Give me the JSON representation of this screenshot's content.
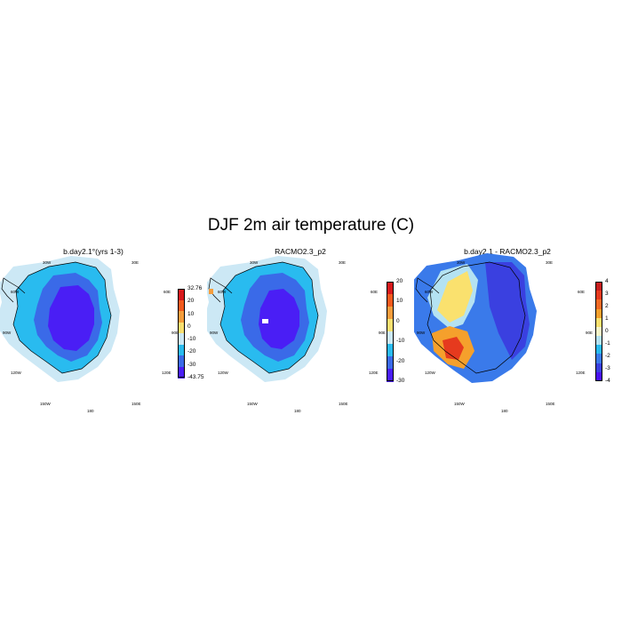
{
  "title": "DJF 2m air temperature (C)",
  "panels": [
    {
      "title": "b.day2.1°(yrs 1-3)",
      "colorbar": {
        "ticks": [
          "32.76",
          "20",
          "10",
          "0",
          "-10",
          "-20",
          "-30",
          "-43.75"
        ],
        "colors": [
          "#d7191c",
          "#f25a1d",
          "#f59d3c",
          "#f8e070",
          "#cce8f5",
          "#29bbef",
          "#3a6ae8",
          "#4a1ef5"
        ]
      }
    },
    {
      "title": "RACMO2.3_p2",
      "colorbar": {
        "ticks": [
          "20",
          "10",
          "0",
          "-10",
          "-20",
          "-30"
        ],
        "colors": [
          "#d7191c",
          "#f25a1d",
          "#f59d3c",
          "#f8e070",
          "#cce8f5",
          "#29bbef",
          "#3a6ae8",
          "#4a1ef5"
        ]
      }
    },
    {
      "title": "b.day2.1 - RACMO2.3_p2",
      "colorbar": {
        "ticks": [
          "4",
          "3",
          "2",
          "1",
          "0",
          "-1",
          "-2",
          "-3",
          "-4"
        ],
        "colors": [
          "#c81e1e",
          "#e63a1e",
          "#f26a24",
          "#f5a02c",
          "#fae16e",
          "#f5f5c8",
          "#b4e2f2",
          "#29bbef",
          "#3a7aea",
          "#3a40e0",
          "#4a10f0"
        ]
      }
    }
  ],
  "lon_labels": {
    "lon30w": "30W",
    "lon30e": "30E",
    "lon60w": "60W",
    "lon60e": "60E",
    "lon90w": "90W",
    "lon90e": "90E",
    "lon120w": "120W",
    "lon120e": "120E",
    "lon150w": "150W",
    "lon150e": "150E",
    "lon180": "180"
  },
  "map_colors": {
    "land_outline": "#000000"
  }
}
